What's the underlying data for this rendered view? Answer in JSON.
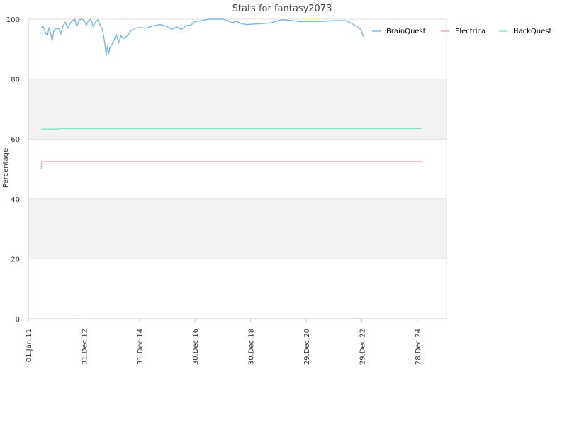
{
  "chart_data": {
    "type": "line",
    "title": "Stats for fantasy2073",
    "ylabel": "Percentage",
    "xlabel": "",
    "ylim": [
      0,
      100
    ],
    "xlim": [
      "2011-01-01",
      "2026-01-15"
    ],
    "y_ticks": [
      "0",
      "20",
      "40",
      "60",
      "80",
      "100"
    ],
    "x_ticks": [
      "01.Jan.11",
      "31.Dec.12",
      "31.Dec.14",
      "30.Dec.16",
      "30.Dec.18",
      "29.Dec.20",
      "29.Dec.22",
      "28.Dec.24"
    ],
    "x_tick_dates": [
      "2011-01-01",
      "2012-12-31",
      "2014-12-31",
      "2016-12-30",
      "2018-12-30",
      "2020-12-29",
      "2022-12-29",
      "2024-12-28"
    ],
    "grid": true,
    "alternating_bands": true,
    "legend_position": "top-right",
    "series": [
      {
        "name": "BrainQuest",
        "color": "#7cb5ec",
        "points": [
          [
            "2011-06-20",
            97.0
          ],
          [
            "2011-07-10",
            97.8
          ],
          [
            "2011-08-01",
            96.5
          ],
          [
            "2011-08-20",
            95.2
          ],
          [
            "2011-09-10",
            94.6
          ],
          [
            "2011-10-01",
            97.2
          ],
          [
            "2011-10-20",
            95.5
          ],
          [
            "2011-11-10",
            92.8
          ],
          [
            "2011-12-01",
            96.0
          ],
          [
            "2012-01-01",
            96.8
          ],
          [
            "2012-02-01",
            97.0
          ],
          [
            "2012-03-01",
            95.0
          ],
          [
            "2012-04-01",
            97.8
          ],
          [
            "2012-05-01",
            99.0
          ],
          [
            "2012-06-01",
            97.0
          ],
          [
            "2012-07-01",
            98.5
          ],
          [
            "2012-08-01",
            99.5
          ],
          [
            "2012-09-01",
            100.0
          ],
          [
            "2012-10-01",
            97.5
          ],
          [
            "2012-11-01",
            99.8
          ],
          [
            "2012-12-01",
            100.0
          ],
          [
            "2013-01-01",
            99.6
          ],
          [
            "2013-02-01",
            98.0
          ],
          [
            "2013-03-01",
            99.5
          ],
          [
            "2013-04-01",
            100.0
          ],
          [
            "2013-05-01",
            97.5
          ],
          [
            "2013-06-01",
            99.0
          ],
          [
            "2013-07-01",
            99.8
          ],
          [
            "2013-08-01",
            98.0
          ],
          [
            "2013-09-01",
            96.5
          ],
          [
            "2013-10-01",
            92.0
          ],
          [
            "2013-10-20",
            88.0
          ],
          [
            "2013-11-05",
            91.0
          ],
          [
            "2013-11-20",
            88.5
          ],
          [
            "2013-12-10",
            90.5
          ],
          [
            "2014-01-01",
            91.5
          ],
          [
            "2014-02-01",
            93.0
          ],
          [
            "2014-03-01",
            95.0
          ],
          [
            "2014-04-01",
            92.0
          ],
          [
            "2014-05-01",
            94.5
          ],
          [
            "2014-06-01",
            93.5
          ],
          [
            "2014-07-01",
            94.0
          ],
          [
            "2014-08-01",
            94.5
          ],
          [
            "2014-09-01",
            95.8
          ],
          [
            "2014-10-01",
            96.5
          ],
          [
            "2014-11-01",
            97.0
          ],
          [
            "2015-01-01",
            97.2
          ],
          [
            "2015-04-01",
            97.0
          ],
          [
            "2015-07-01",
            97.8
          ],
          [
            "2015-10-01",
            98.2
          ],
          [
            "2016-01-01",
            97.5
          ],
          [
            "2016-03-01",
            96.5
          ],
          [
            "2016-05-01",
            97.5
          ],
          [
            "2016-07-01",
            96.5
          ],
          [
            "2016-09-01",
            97.8
          ],
          [
            "2016-11-01",
            98.0
          ],
          [
            "2017-01-01",
            99.2
          ],
          [
            "2017-04-01",
            99.5
          ],
          [
            "2017-07-01",
            100.0
          ],
          [
            "2018-01-01",
            100.0
          ],
          [
            "2018-03-01",
            99.5
          ],
          [
            "2018-05-01",
            98.8
          ],
          [
            "2018-07-01",
            99.3
          ],
          [
            "2018-09-01",
            98.5
          ],
          [
            "2018-11-01",
            98.2
          ],
          [
            "2019-03-01",
            98.4
          ],
          [
            "2019-07-01",
            98.6
          ],
          [
            "2019-10-01",
            98.8
          ],
          [
            "2020-01-01",
            99.6
          ],
          [
            "2020-03-01",
            99.8
          ],
          [
            "2020-07-01",
            99.5
          ],
          [
            "2020-10-01",
            99.2
          ],
          [
            "2021-01-01",
            99.2
          ],
          [
            "2021-06-01",
            99.2
          ],
          [
            "2021-09-01",
            99.3
          ],
          [
            "2022-01-01",
            99.5
          ],
          [
            "2022-06-01",
            99.5
          ],
          [
            "2022-08-01",
            98.8
          ],
          [
            "2022-11-01",
            97.5
          ],
          [
            "2022-12-20",
            96.5
          ],
          [
            "2023-01-10",
            94.8
          ],
          [
            "2023-01-25",
            94.0
          ]
        ]
      },
      {
        "name": "Electrica",
        "color": "#f7a6c0",
        "points": [
          [
            "2011-06-20",
            50.0
          ],
          [
            "2011-06-25",
            52.5
          ],
          [
            "2025-03-01",
            52.5
          ]
        ]
      },
      {
        "name": "HackQuest",
        "color": "#90e4d4",
        "points": [
          [
            "2011-06-20",
            63.3
          ],
          [
            "2012-02-01",
            63.3
          ],
          [
            "2012-02-10",
            63.5
          ],
          [
            "2025-03-01",
            63.5
          ]
        ]
      }
    ]
  }
}
